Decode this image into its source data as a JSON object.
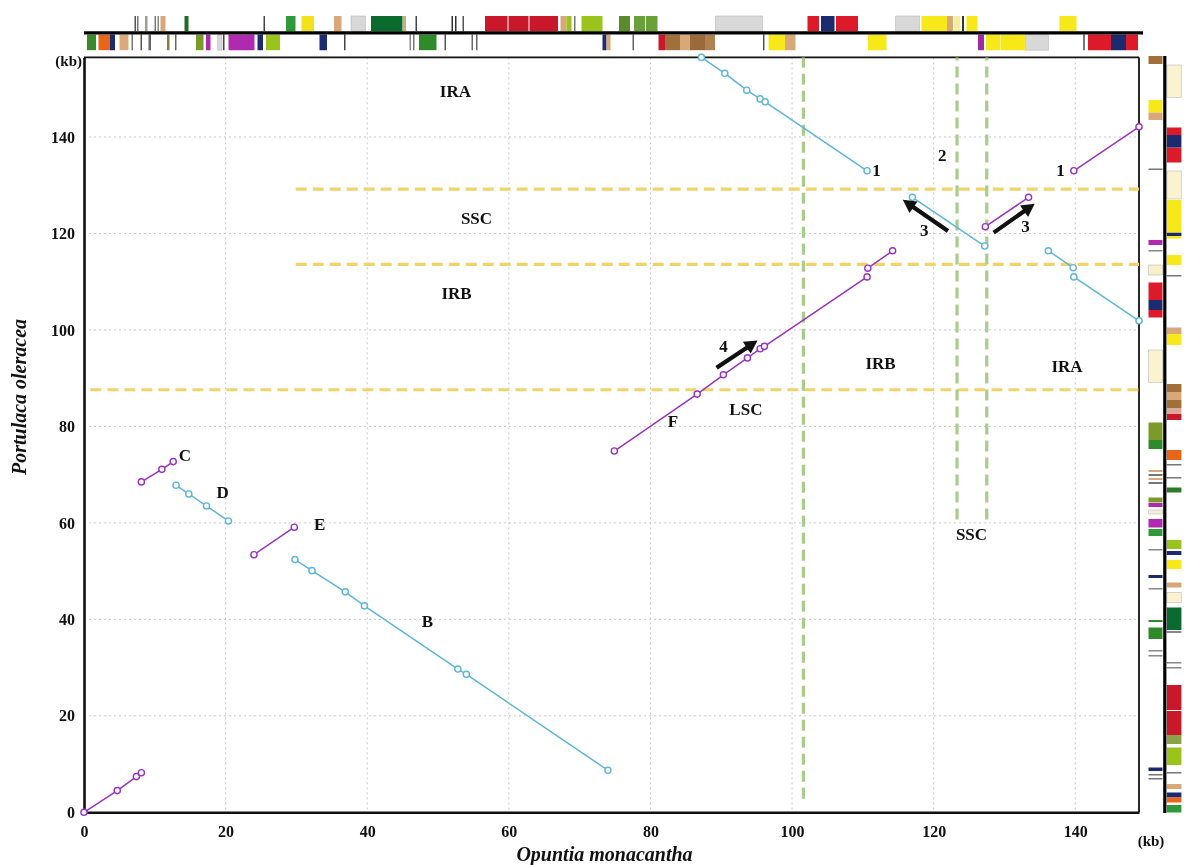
{
  "chart_data": {
    "type": "line",
    "xlabel": "Opuntia monacantha",
    "ylabel": "Portulaca oleracea",
    "xlim": [
      0,
      149
    ],
    "ylim": [
      0,
      156.5
    ],
    "xticks": [
      0,
      20,
      40,
      60,
      80,
      100,
      120,
      140
    ],
    "yticks": [
      0,
      20,
      40,
      60,
      80,
      100,
      120,
      140
    ],
    "grid": true,
    "marker": "circle",
    "line_style": "solid",
    "series": [
      {
        "color": "#f2d36b",
        "x": [
          29.9,
          149
        ],
        "values": [
          129.2,
          129.2
        ],
        "marker": "none",
        "line_style": "dashed"
      },
      {
        "color": "#f2d36b",
        "x": [
          29.9,
          149
        ],
        "values": [
          113.6,
          113.6
        ],
        "marker": "none",
        "line_style": "dashed"
      },
      {
        "color": "#f2d36b",
        "x": [
          0.9,
          149
        ],
        "values": [
          87.6,
          87.6
        ],
        "marker": "none",
        "line_style": "dashed"
      },
      {
        "color": "#a9cc8a",
        "x": [
          101.6,
          101.6
        ],
        "values": [
          2.8,
          156.5
        ],
        "marker": "none",
        "line_style": "dashed"
      },
      {
        "color": "#a9cc8a",
        "x": [
          123.3,
          123.3
        ],
        "values": [
          60.7,
          156.5
        ],
        "marker": "none",
        "line_style": "dashed"
      },
      {
        "color": "#a9cc8a",
        "x": [
          127.5,
          127.5
        ],
        "values": [
          60.7,
          156.5
        ],
        "marker": "none",
        "line_style": "dashed"
      },
      {
        "color": "#9a32c0",
        "x": [
          0,
          4.7,
          7.4,
          8.1
        ],
        "values": [
          0,
          4.5,
          7.4,
          8.2
        ]
      },
      {
        "color": "#9a32c0",
        "x": [
          8.1,
          11.0,
          12.6
        ],
        "values": [
          68.5,
          71.1,
          72.7
        ]
      },
      {
        "color": "#5cb6d8",
        "x": [
          13.0,
          14.8,
          17.3,
          20.4
        ],
        "values": [
          67.8,
          66.0,
          63.5,
          60.4
        ]
      },
      {
        "color": "#9a32c0",
        "x": [
          24.0,
          29.7
        ],
        "values": [
          53.4,
          59.1
        ]
      },
      {
        "color": "#5cb6d8",
        "x": [
          29.8,
          32.2,
          36.9,
          39.6,
          52.8,
          54.0,
          74.0
        ],
        "values": [
          52.4,
          50.1,
          45.7,
          42.8,
          29.7,
          28.6,
          8.7
        ]
      },
      {
        "color": "#9a32c0",
        "x": [
          74.9,
          86.6,
          90.3,
          93.7,
          95.5,
          96.1,
          110.6
        ],
        "values": [
          74.9,
          86.7,
          90.7,
          94.2,
          96.1,
          96.6,
          111.0
        ]
      },
      {
        "color": "#9a32c0",
        "x": [
          110.7,
          114.2
        ],
        "values": [
          112.8,
          116.4
        ]
      },
      {
        "color": "#5cb6d8",
        "x": [
          87.2,
          90.5,
          93.6,
          95.5,
          96.2,
          110.6
        ],
        "values": [
          156.5,
          153.2,
          149.7,
          147.9,
          147.3,
          133.0
        ]
      },
      {
        "color": "#5cb6d8",
        "x": [
          117.0,
          127.2
        ],
        "values": [
          127.5,
          117.4
        ]
      },
      {
        "color": "#9a32c0",
        "x": [
          127.3,
          133.4
        ],
        "values": [
          121.4,
          127.5
        ]
      },
      {
        "color": "#9a32c0",
        "x": [
          139.8,
          149.0
        ],
        "values": [
          133.0,
          142.1
        ]
      },
      {
        "color": "#5cb6d8",
        "x": [
          136.2,
          139.7
        ],
        "values": [
          116.4,
          112.9
        ]
      },
      {
        "color": "#5cb6d8",
        "x": [
          139.8,
          149.0
        ],
        "values": [
          111.0,
          101.9
        ]
      }
    ],
    "annotations": [
      "IRA",
      "SSC",
      "IRB",
      "C",
      "D",
      "E",
      "B",
      "F",
      "LSC",
      "4",
      "IRB",
      "IRA",
      "1",
      "1",
      "2",
      "3",
      "3",
      "SSC",
      "(kb)",
      "(kb)"
    ]
  }
}
